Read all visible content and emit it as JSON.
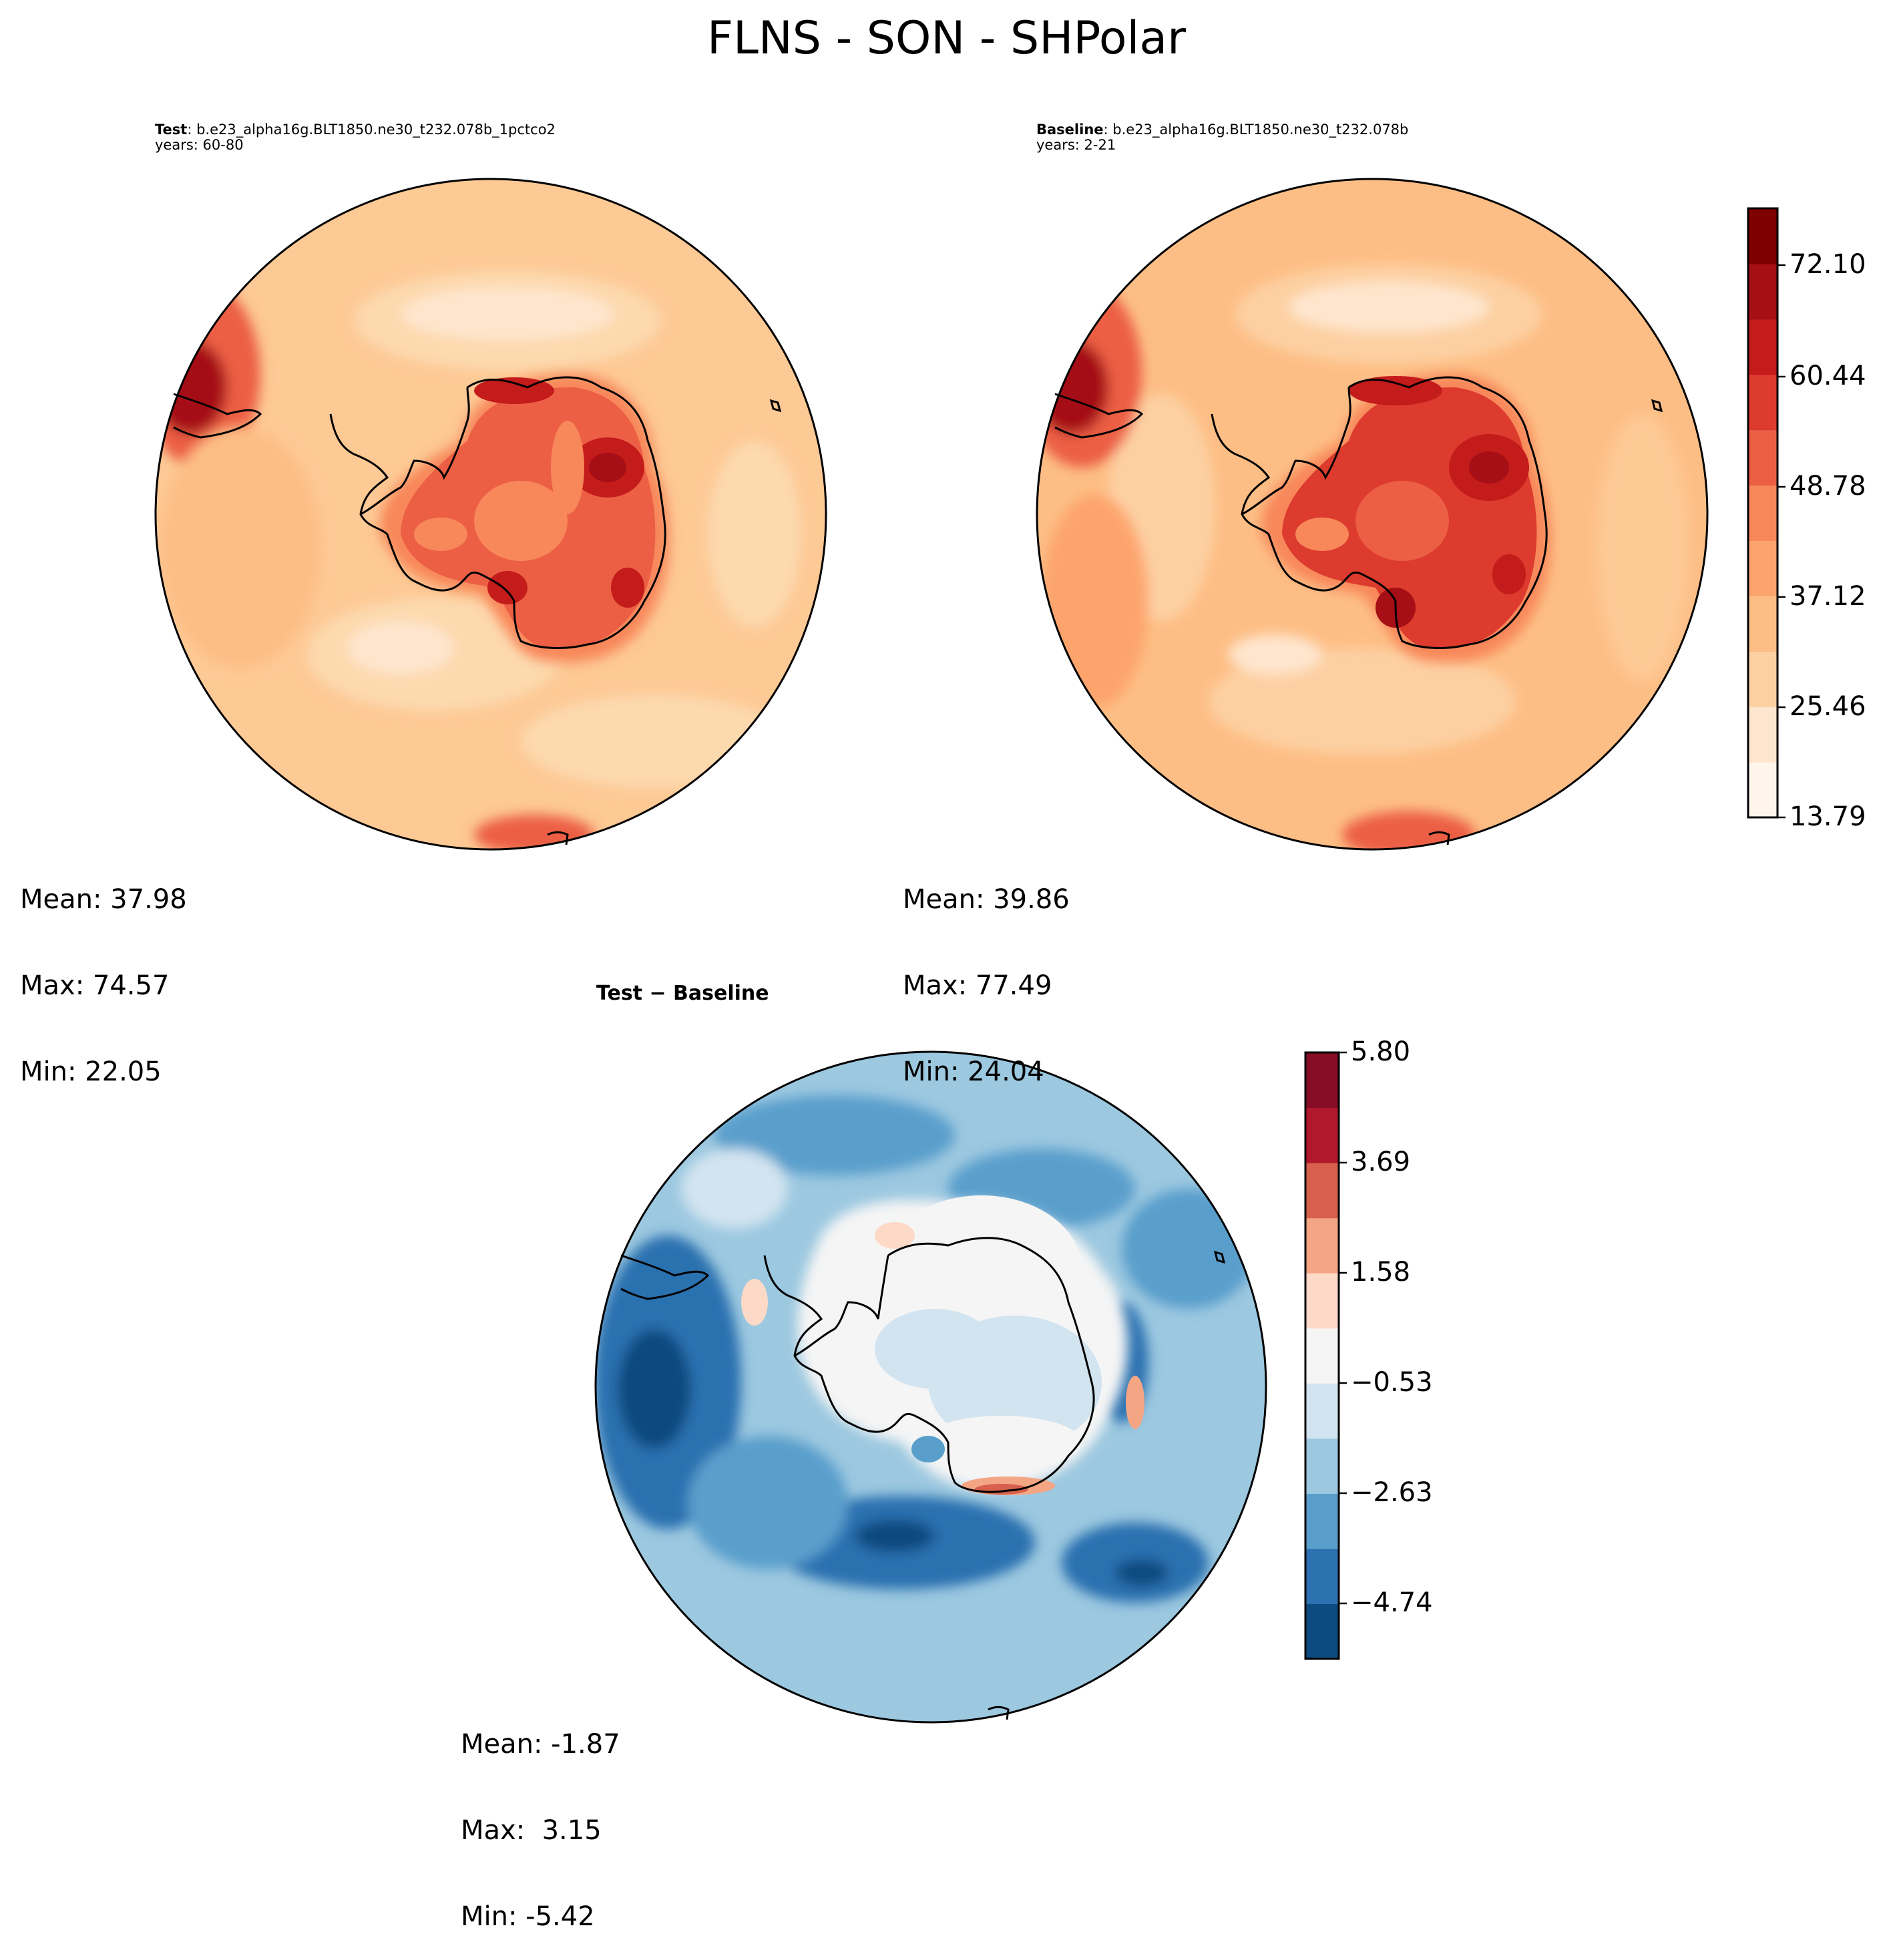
{
  "figure": {
    "title": "FLNS - SON - SHPolar"
  },
  "panels": {
    "test": {
      "label": "Test",
      "case": ": b.e23_alpha16g.BLT1850.ne30_t232.078b_1pctco2",
      "years": "years: 60-80",
      "stats": {
        "mean": "Mean: 37.98",
        "max": "Max: 74.57",
        "min": "Min: 22.05"
      }
    },
    "baseline": {
      "label": "Baseline",
      "case": ": b.e23_alpha16g.BLT1850.ne30_t232.078b",
      "years": "years: 2-21",
      "stats": {
        "mean": "Mean: 39.86",
        "max": "Max: 77.49",
        "min": "Min: 24.04"
      }
    },
    "diff": {
      "label": "Test − Baseline",
      "stats": {
        "mean": "Mean: -1.87",
        "max": "Max:  3.15",
        "min": "Min: -5.42"
      }
    }
  },
  "chart_data": [
    {
      "type": "heatmap",
      "projection": "south polar stereographic",
      "colormap": "Reds",
      "colors": [
        "#fff5eb",
        "#fee6ce",
        "#fdd0a2",
        "#fdbe85",
        "#fda46d",
        "#f8875a",
        "#ec5f45",
        "#dc3b2d",
        "#c41b1b",
        "#a50f15",
        "#7f0000"
      ],
      "colorbar_ticks": [
        "72.10",
        "60.44",
        "48.78",
        "37.12",
        "25.46",
        "13.79"
      ],
      "colorbar_range": [
        13.79,
        77.49
      ]
    },
    {
      "type": "heatmap",
      "projection": "south polar stereographic",
      "colormap": "RdBu_r",
      "colors": [
        "#0d4a7f",
        "#2c71b0",
        "#5a9fcc",
        "#9cc8e0",
        "#d2e4f0",
        "#f5f5f5",
        "#fdd9c7",
        "#f4a583",
        "#d6604d",
        "#b2182b",
        "#850d25"
      ],
      "colorbar_ticks": [
        "5.80",
        "3.69",
        "1.58",
        "−0.53",
        "−2.63",
        "−4.74"
      ],
      "colorbar_range": [
        -5.8,
        5.8
      ]
    }
  ]
}
